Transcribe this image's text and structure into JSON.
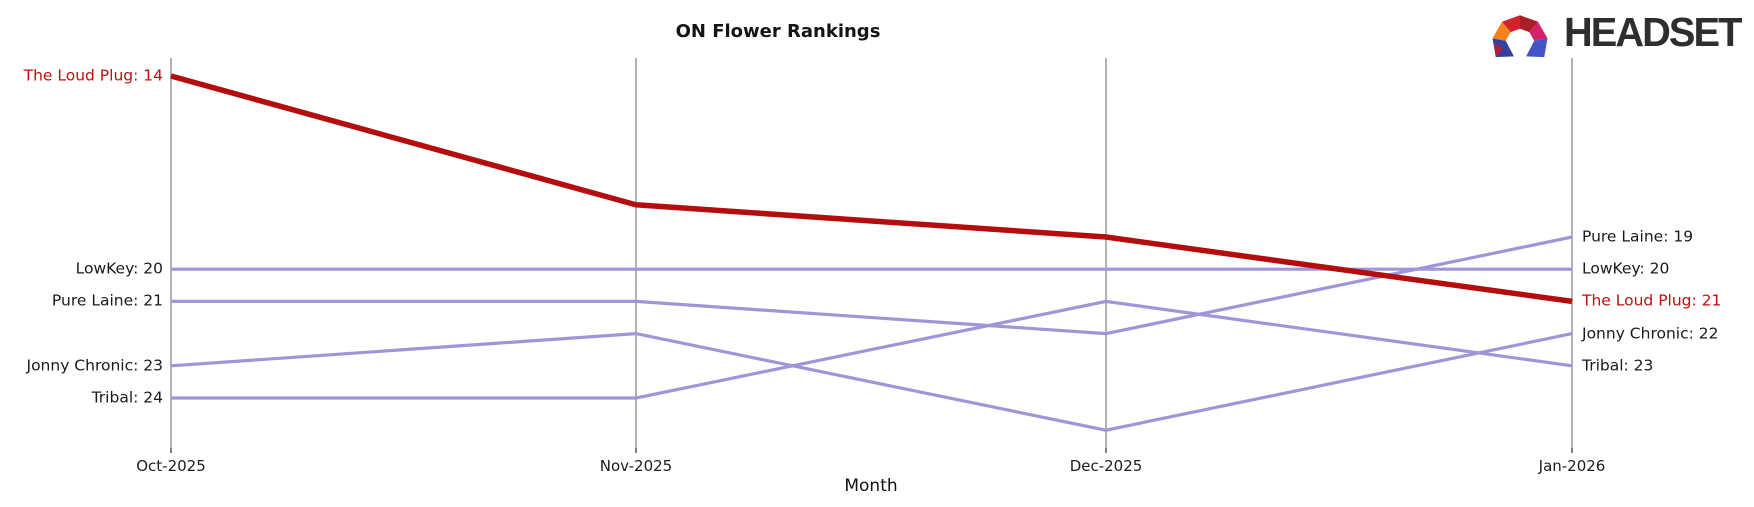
{
  "logo": {
    "text": "HEADSET"
  },
  "chart_data": {
    "type": "line",
    "subtype": "bump-ranking",
    "title": "ON Flower Rankings",
    "xlabel": "Month",
    "categories": [
      "Oct-2025",
      "Nov-2025",
      "Dec-2025",
      "Jan-2026"
    ],
    "rank_axis": {
      "best": 14,
      "worst": 25,
      "inverted": true,
      "grid": "vertical-month-lines-only"
    },
    "legend_position": "edge-labels",
    "series": [
      {
        "name": "The Loud Plug",
        "values": [
          14,
          18,
          19,
          21
        ],
        "color": "#b40d0d",
        "highlighted": true,
        "left_label": "The Loud Plug: 14",
        "right_label": "The Loud Plug: 21"
      },
      {
        "name": "LowKey",
        "values": [
          20,
          20,
          20,
          20
        ],
        "color": "#9e96d8",
        "highlighted": false,
        "left_label": "LowKey: 20",
        "right_label": "LowKey: 20"
      },
      {
        "name": "Pure Laine",
        "values": [
          21,
          21,
          22,
          19
        ],
        "color": "#9e96d8",
        "highlighted": false,
        "left_label": "Pure Laine: 21",
        "right_label": "Pure Laine: 19"
      },
      {
        "name": "Jonny Chronic",
        "values": [
          23,
          22,
          25,
          22
        ],
        "color": "#9e96d8",
        "highlighted": false,
        "left_label": "Jonny Chronic: 23",
        "right_label": "Jonny Chronic: 22"
      },
      {
        "name": "Tribal",
        "values": [
          24,
          24,
          21,
          23
        ],
        "color": "#9e96d8",
        "highlighted": false,
        "left_label": "Tribal: 24",
        "right_label": "Tribal: 23"
      }
    ],
    "colors": {
      "highlight_line": "#b40d0d",
      "highlight_label": "#c00d0d",
      "default_line": "#9e96d8",
      "default_label": "#1a1a1a",
      "axis_line": "#b2b2b2",
      "tick_mark": "#2b2b2b"
    },
    "logo_colors": {
      "orange": "#f5821e",
      "red": "#d2232a",
      "dark_red": "#a81e29",
      "magenta": "#d6216b",
      "blue": "#4453c5",
      "indigo": "#33409c",
      "accent_red": "#b51f35"
    }
  }
}
